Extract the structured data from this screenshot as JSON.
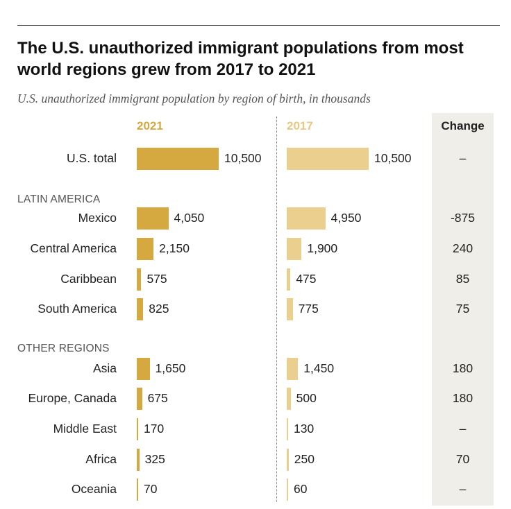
{
  "title": "The U.S. unauthorized immigrant populations from most world regions grew from 2017 to 2021",
  "subtitle": "U.S. unauthorized immigrant population by region of birth, in thousands",
  "columns": {
    "y2021": "2021",
    "y2017": "2017",
    "change": "Change"
  },
  "colors": {
    "bar2021": "#d6a940",
    "bar2017": "#eacf8f",
    "change_bg": "#efeee9"
  },
  "chart_data": {
    "type": "bar",
    "units": "thousands",
    "series": [
      {
        "name": "2021",
        "values": [
          10500,
          4050,
          2150,
          575,
          825,
          1650,
          675,
          170,
          325,
          70
        ]
      },
      {
        "name": "2017",
        "values": [
          10500,
          4950,
          1900,
          475,
          775,
          1450,
          500,
          130,
          250,
          60
        ]
      }
    ],
    "categories": [
      "U.S. total",
      "Mexico",
      "Central America",
      "Caribbean",
      "South America",
      "Asia",
      "Europe, Canada",
      "Middle East",
      "Africa",
      "Oceania"
    ],
    "groups": [
      {
        "label": "",
        "rows": [
          {
            "label": "U.S. total",
            "v2021": 10500,
            "v2017": 10500,
            "t2021": "10,500",
            "t2017": "10,500",
            "change": "–"
          }
        ]
      },
      {
        "label": "LATIN AMERICA",
        "rows": [
          {
            "label": "Mexico",
            "v2021": 4050,
            "v2017": 4950,
            "t2021": "4,050",
            "t2017": "4,950",
            "change": "-875"
          },
          {
            "label": "Central America",
            "v2021": 2150,
            "v2017": 1900,
            "t2021": "2,150",
            "t2017": "1,900",
            "change": "240"
          },
          {
            "label": "Caribbean",
            "v2021": 575,
            "v2017": 475,
            "t2021": "575",
            "t2017": "475",
            "change": "85"
          },
          {
            "label": "South America",
            "v2021": 825,
            "v2017": 775,
            "t2021": "825",
            "t2017": "775",
            "change": "75"
          }
        ]
      },
      {
        "label": "OTHER REGIONS",
        "rows": [
          {
            "label": "Asia",
            "v2021": 1650,
            "v2017": 1450,
            "t2021": "1,650",
            "t2017": "1,450",
            "change": "180"
          },
          {
            "label": "Europe, Canada",
            "v2021": 675,
            "v2017": 500,
            "t2021": "675",
            "t2017": "500",
            "change": "180"
          },
          {
            "label": "Middle East",
            "v2021": 170,
            "v2017": 130,
            "t2021": "170",
            "t2017": "130",
            "change": "–"
          },
          {
            "label": "Africa",
            "v2021": 325,
            "v2017": 250,
            "t2021": "325",
            "t2017": "250",
            "change": "70"
          },
          {
            "label": "Oceania",
            "v2021": 70,
            "v2017": 60,
            "t2021": "70",
            "t2017": "60",
            "change": "–"
          }
        ]
      }
    ]
  }
}
